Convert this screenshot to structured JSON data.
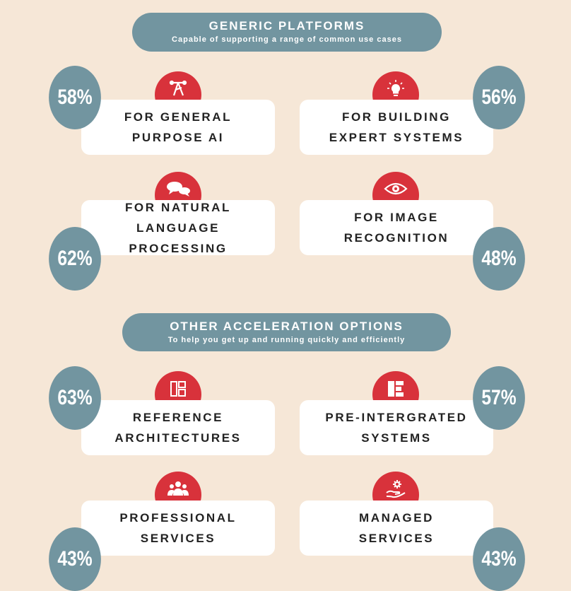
{
  "sections": [
    {
      "title": "GENERIC PLATFORMS",
      "subtitle": "Capable of supporting a range of common use cases"
    },
    {
      "title": "OTHER ACCELERATION OPTIONS",
      "subtitle": "To help you get up and running quickly and efficiently"
    }
  ],
  "items": [
    {
      "label": "FOR GENERAL\nPURPOSE AI",
      "percent": "58%",
      "icon": "network-icon"
    },
    {
      "label": "FOR BUILDING\nEXPERT SYSTEMS",
      "percent": "56%",
      "icon": "lightbulb-icon"
    },
    {
      "label": "FOR NATURAL LANGUAGE\nPROCESSING",
      "percent": "62%",
      "icon": "speech-bubbles-icon"
    },
    {
      "label": "FOR IMAGE\nRECOGNITION",
      "percent": "48%",
      "icon": "eye-icon"
    },
    {
      "label": "REFERENCE\nARCHITECTURES",
      "percent": "63%",
      "icon": "blueprint-icon"
    },
    {
      "label": "PRE-INTERGRATED\nSYSTEMS",
      "percent": "57%",
      "icon": "modules-icon"
    },
    {
      "label": "PROFESSIONAL\nSERVICES",
      "percent": "43%",
      "icon": "people-icon"
    },
    {
      "label": "MANAGED\nSERVICES",
      "percent": "43%",
      "icon": "hand-gear-icon"
    }
  ],
  "colors": {
    "background": "#f6e7d7",
    "accent_red": "#d8323b",
    "slate": "#7295a0",
    "card": "#ffffff"
  }
}
